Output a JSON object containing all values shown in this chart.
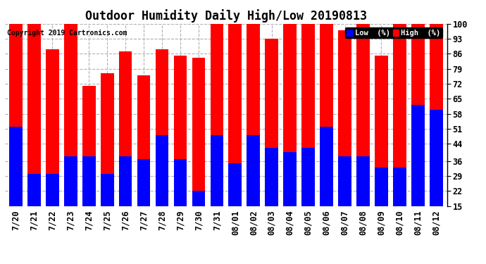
{
  "title": "Outdoor Humidity Daily High/Low 20190813",
  "copyright": "Copyright 2019 Cartronics.com",
  "legend_low": "Low  (%)",
  "legend_high": "High  (%)",
  "dates": [
    "7/20",
    "7/21",
    "7/22",
    "7/23",
    "7/24",
    "7/25",
    "7/26",
    "7/27",
    "7/28",
    "7/29",
    "7/30",
    "7/31",
    "08/01",
    "08/02",
    "08/03",
    "08/04",
    "08/05",
    "08/06",
    "08/07",
    "08/08",
    "08/09",
    "08/10",
    "08/11",
    "08/12"
  ],
  "high": [
    100,
    100,
    88,
    100,
    71,
    77,
    87,
    76,
    88,
    85,
    84,
    100,
    100,
    100,
    93,
    100,
    100,
    100,
    97,
    100,
    85,
    100,
    100,
    100
  ],
  "low": [
    52,
    30,
    30,
    38,
    38,
    30,
    38,
    37,
    48,
    37,
    22,
    48,
    35,
    48,
    42,
    40,
    42,
    52,
    38,
    38,
    33,
    33,
    62,
    60
  ],
  "ylim_min": 15,
  "ylim_max": 100,
  "yticks": [
    15,
    22,
    29,
    36,
    44,
    51,
    58,
    65,
    72,
    79,
    86,
    93,
    100
  ],
  "bar_color_high": "#ff0000",
  "bar_color_low": "#0000ff",
  "background_color": "#ffffff",
  "grid_color": "#b0b0b0",
  "title_fontsize": 12,
  "tick_fontsize": 8.5,
  "bar_width": 0.72
}
